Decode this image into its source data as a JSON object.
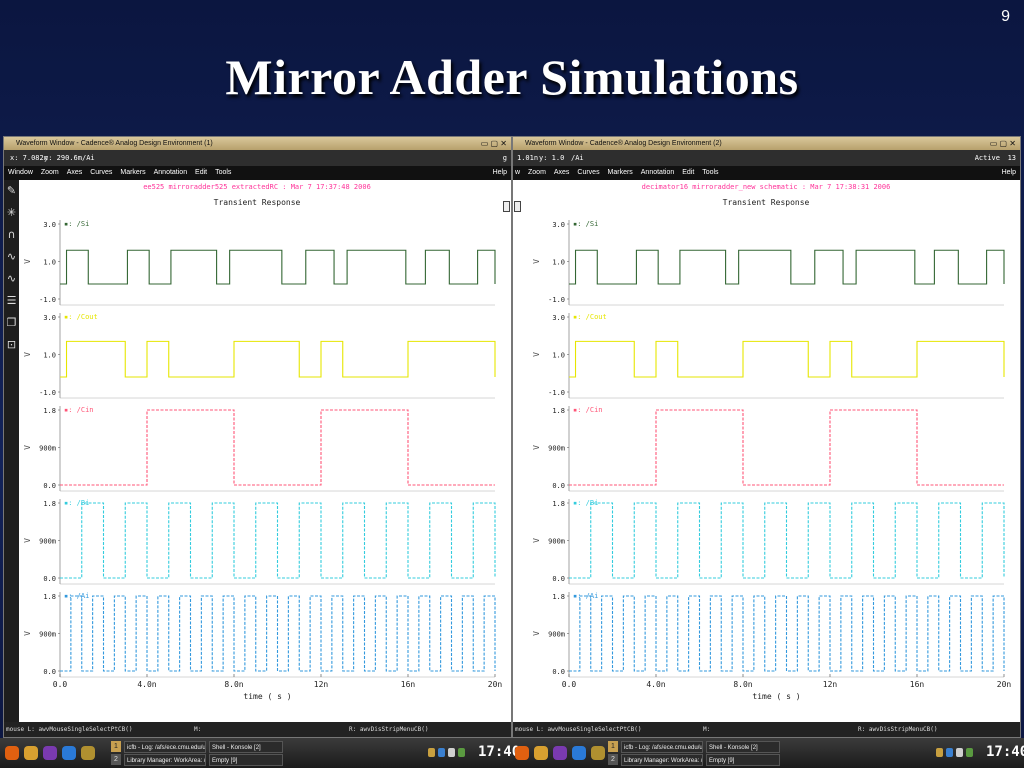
{
  "slide": {
    "number": "9",
    "title": "Mirror Adder Simulations"
  },
  "windows": [
    {
      "title": "Waveform Window - Cadence® Analog Design Environment (1)",
      "coord_x": "x: 7.082n",
      "coord_y": "y: 290.6m",
      "coord_sig": "/Ai",
      "coord_extra": "g",
      "menu": [
        "Window",
        "Zoom",
        "Axes",
        "Curves",
        "Markers",
        "Annotation",
        "Edit",
        "Tools"
      ],
      "help": "Help",
      "header": "ee525 mirroradder525 extractedRC : Mar  7 17:37:48 2006",
      "plot_title": "Transient Response",
      "status_left": "mouse L: awvMouseSingleSelectPtCB()",
      "status_mid": "M:",
      "status_right": "R: awvDisStripMenuCB()"
    },
    {
      "title": "Waveform Window - Cadence® Analog Design Environment (2)",
      "coord_x": "1.01n",
      "coord_y": "y: 1.0",
      "coord_sig": "/Ai",
      "active_label": "Active",
      "active_value": "13",
      "menu": [
        "w",
        "Zoom",
        "Axes",
        "Curves",
        "Markers",
        "Annotation",
        "Edit",
        "Tools"
      ],
      "help": "Help",
      "header": "decimator16 mirroradder_new schematic : Mar  7 17:38:31 2006",
      "plot_title": "Transient Response",
      "status_left": "mouse L: awvMouseSingleSelectPtCB()",
      "status_mid": "M:",
      "status_right": "R: awvDisStripMenuCB()"
    }
  ],
  "chart_data": [
    {
      "type": "line",
      "title": "Transient Response",
      "xlabel": "time ( s )",
      "x_ticks": [
        "0.0",
        "4.0n",
        "8.0n",
        "12n",
        "16n",
        "20n"
      ],
      "xlim": [
        0,
        20
      ],
      "x_unit": "ns",
      "series": [
        {
          "name": "/Si",
          "color": "#336633",
          "ylim": [
            -1.0,
            3.0
          ],
          "yticks": [
            "3.0",
            "1.0",
            "-1.0"
          ],
          "low": -0.2,
          "high": 1.6,
          "highs": [
            [
              0.3,
              1.3
            ],
            [
              3.1,
              4.1
            ],
            [
              5.1,
              7.2
            ],
            [
              7.8,
              10.2
            ],
            [
              11.3,
              12.6
            ],
            [
              13.2,
              15.9
            ],
            [
              16.8,
              17.9
            ],
            [
              19.2,
              20.0
            ]
          ]
        },
        {
          "name": "/Cout",
          "color": "#e6e600",
          "ylim": [
            -1.0,
            3.0
          ],
          "yticks": [
            "3.0",
            "1.0",
            "-1.0"
          ],
          "low": -0.2,
          "high": 1.7,
          "highs": [
            [
              0.3,
              3.0
            ],
            [
              4.0,
              5.0
            ],
            [
              8.0,
              11.0
            ],
            [
              12.0,
              13.0
            ],
            [
              16.0,
              20.0
            ]
          ]
        },
        {
          "name": "/Cin",
          "color": "#ff5577",
          "ylim": [
            0,
            1.8
          ],
          "yticks": [
            "1.8",
            "900m",
            "0.0"
          ],
          "low": 0.0,
          "high": 1.8,
          "highs": [
            [
              4.0,
              8.0
            ],
            [
              12.0,
              16.0
            ]
          ]
        },
        {
          "name": "/Bi",
          "color": "#33ccdd",
          "ylim": [
            0,
            1.8
          ],
          "yticks": [
            "1.8",
            "900m",
            "0.0"
          ],
          "low": 0.0,
          "high": 1.8,
          "highs": [
            [
              1.0,
              2.0
            ],
            [
              3.0,
              4.0
            ],
            [
              5.0,
              6.0
            ],
            [
              7.0,
              8.0
            ],
            [
              9.0,
              10.0
            ],
            [
              11.0,
              12.0
            ],
            [
              13.0,
              14.0
            ],
            [
              15.0,
              16.0
            ],
            [
              17.0,
              18.0
            ],
            [
              19.0,
              20.0
            ]
          ]
        },
        {
          "name": "/Ai",
          "color": "#3399dd",
          "ylim": [
            0,
            1.8
          ],
          "yticks": [
            "1.8",
            "900m",
            "0.0"
          ],
          "low": 0.0,
          "high": 1.8,
          "highs": [
            [
              0.5,
              1.0
            ],
            [
              1.5,
              2.0
            ],
            [
              2.5,
              3.0
            ],
            [
              3.5,
              4.0
            ],
            [
              4.5,
              5.0
            ],
            [
              5.5,
              6.0
            ],
            [
              6.5,
              7.0
            ],
            [
              7.5,
              8.0
            ],
            [
              8.5,
              9.0
            ],
            [
              9.5,
              10.0
            ],
            [
              10.5,
              11.0
            ],
            [
              11.5,
              12.0
            ],
            [
              12.5,
              13.0
            ],
            [
              13.5,
              14.0
            ],
            [
              14.5,
              15.0
            ],
            [
              15.5,
              16.0
            ],
            [
              16.5,
              17.0
            ],
            [
              17.5,
              18.0
            ],
            [
              18.5,
              19.0
            ],
            [
              19.5,
              20.0
            ]
          ]
        }
      ]
    },
    {
      "type": "line",
      "title": "Transient Response",
      "xlabel": "time ( s )",
      "x_ticks": [
        "0.0",
        "4.0n",
        "8.0n",
        "12n",
        "16n",
        "20n"
      ],
      "xlim": [
        0,
        20
      ],
      "x_unit": "ns",
      "series": [
        {
          "name": "/Si",
          "color": "#336633",
          "ylim": [
            -1.0,
            3.0
          ],
          "yticks": [
            "3.0",
            "1.0",
            "-1.0"
          ],
          "low": -0.2,
          "high": 1.6,
          "highs": [
            [
              0.3,
              1.3
            ],
            [
              3.1,
              4.1
            ],
            [
              5.1,
              7.2
            ],
            [
              7.8,
              10.2
            ],
            [
              11.3,
              12.6
            ],
            [
              13.2,
              15.9
            ],
            [
              16.8,
              17.9
            ],
            [
              19.2,
              20.0
            ]
          ]
        },
        {
          "name": "/Cout",
          "color": "#e6e600",
          "ylim": [
            -1.0,
            3.0
          ],
          "yticks": [
            "3.0",
            "1.0",
            "-1.0"
          ],
          "low": -0.2,
          "high": 1.7,
          "highs": [
            [
              0.3,
              3.0
            ],
            [
              4.0,
              5.0
            ],
            [
              8.0,
              11.0
            ],
            [
              12.0,
              13.0
            ],
            [
              16.0,
              20.0
            ]
          ]
        },
        {
          "name": "/Cin",
          "color": "#ff5577",
          "ylim": [
            0,
            1.8
          ],
          "yticks": [
            "1.8",
            "900m",
            "0.0"
          ],
          "low": 0.0,
          "high": 1.8,
          "highs": [
            [
              4.0,
              8.0
            ],
            [
              12.0,
              16.0
            ]
          ]
        },
        {
          "name": "/Bi",
          "color": "#33ccdd",
          "ylim": [
            0,
            1.8
          ],
          "yticks": [
            "1.8",
            "900m",
            "0.0"
          ],
          "low": 0.0,
          "high": 1.8,
          "highs": [
            [
              1.0,
              2.0
            ],
            [
              3.0,
              4.0
            ],
            [
              5.0,
              6.0
            ],
            [
              7.0,
              8.0
            ],
            [
              9.0,
              10.0
            ],
            [
              11.0,
              12.0
            ],
            [
              13.0,
              14.0
            ],
            [
              15.0,
              16.0
            ],
            [
              17.0,
              18.0
            ],
            [
              19.0,
              20.0
            ]
          ]
        },
        {
          "name": "/Ai",
          "color": "#3399dd",
          "ylim": [
            0,
            1.8
          ],
          "yticks": [
            "1.8",
            "900m",
            "0.0"
          ],
          "low": 0.0,
          "high": 1.8,
          "highs": [
            [
              0.5,
              1.0
            ],
            [
              1.5,
              2.0
            ],
            [
              2.5,
              3.0
            ],
            [
              3.5,
              4.0
            ],
            [
              4.5,
              5.0
            ],
            [
              5.5,
              6.0
            ],
            [
              6.5,
              7.0
            ],
            [
              7.5,
              8.0
            ],
            [
              8.5,
              9.0
            ],
            [
              9.5,
              10.0
            ],
            [
              10.5,
              11.0
            ],
            [
              11.5,
              12.0
            ],
            [
              12.5,
              13.0
            ],
            [
              13.5,
              14.0
            ],
            [
              14.5,
              15.0
            ],
            [
              15.5,
              16.0
            ],
            [
              16.5,
              17.0
            ],
            [
              17.5,
              18.0
            ],
            [
              18.5,
              19.0
            ],
            [
              19.5,
              20.0
            ]
          ]
        }
      ]
    }
  ],
  "taskbar": [
    {
      "desktops": [
        "1",
        "2"
      ],
      "tasks": [
        "icfb - Log: /afs/ece.cmu.edu/u",
        "Shell - Konsole [2]",
        "Library Manager: WorkArea: /u/",
        "Empty [9]"
      ],
      "clock": "17:40"
    },
    {
      "desktops": [
        "1",
        "2"
      ],
      "tasks": [
        "icfb - Log: /afs/ece.cmu.edu/u",
        "Shell - Konsole [2]",
        "Library Manager: WorkArea: /u/",
        "Empty [9]"
      ],
      "clock": "17:40"
    }
  ],
  "icons": {
    "toolbar": [
      "pencil-icon",
      "sparkle-icon",
      "magnet-icon",
      "wave-down-icon",
      "wave-up-icon",
      "strip-icon",
      "copy-icon",
      "select-icon"
    ],
    "launcher": [
      "firefox-icon",
      "kde-icon",
      "pixel-icon",
      "help-icon",
      "terminal-icon"
    ]
  },
  "colors": {
    "slide_bg": "#13235a",
    "title": "#ffffff",
    "header_text": "#ff3399",
    "titlebar": "#c8b27e"
  }
}
